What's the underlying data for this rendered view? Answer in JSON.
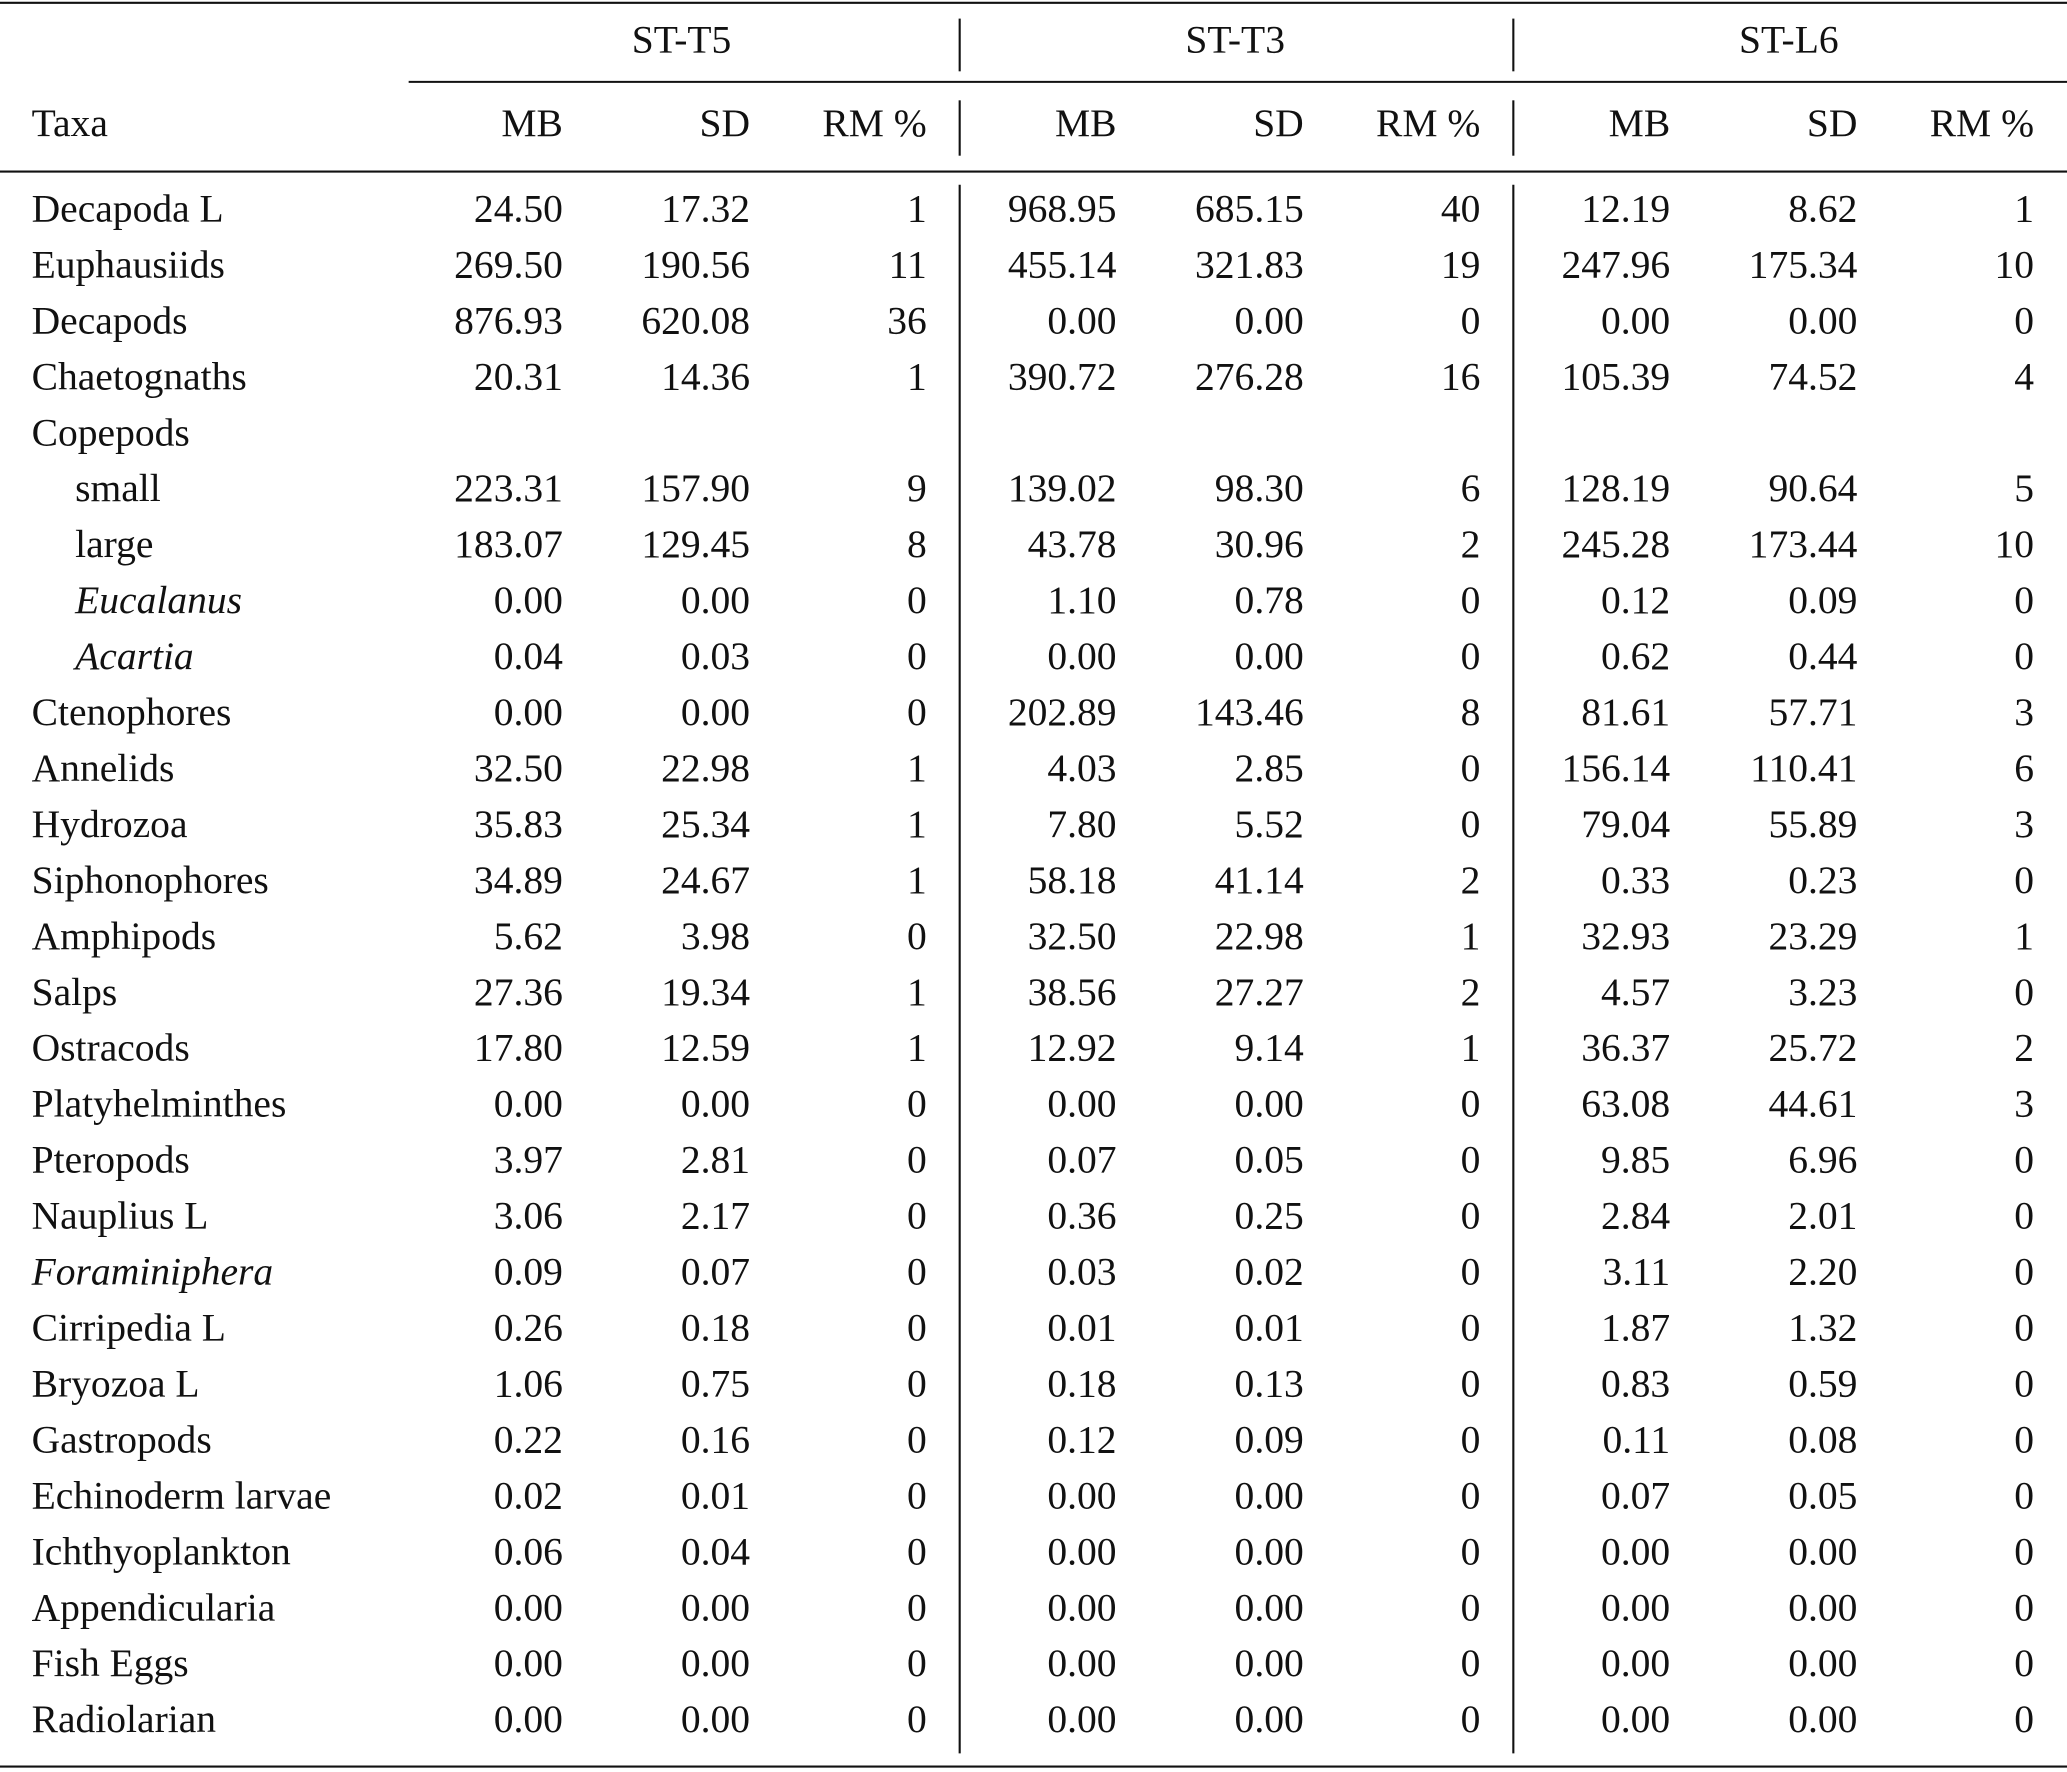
{
  "table": {
    "groups": [
      "ST-T5",
      "ST-T3",
      "ST-L6"
    ],
    "columns": [
      "Taxa",
      "MB",
      "SD",
      "RM %",
      "MB",
      "SD",
      "RM %",
      "MB",
      "SD",
      "RM %"
    ],
    "rows": [
      [
        "Decapoda L",
        "24.50",
        "17.32",
        "1",
        "968.95",
        "685.15",
        "40",
        "12.19",
        "8.62",
        "1"
      ],
      [
        "Euphausiids",
        "269.50",
        "190.56",
        "11",
        "455.14",
        "321.83",
        "19",
        "247.96",
        "175.34",
        "10"
      ],
      [
        "Decapods",
        "876.93",
        "620.08",
        "36",
        "0.00",
        "0.00",
        "0",
        "0.00",
        "0.00",
        "0"
      ],
      [
        "Chaetognaths",
        "20.31",
        "14.36",
        "1",
        "390.72",
        "276.28",
        "16",
        "105.39",
        "74.52",
        "4"
      ],
      [
        "Copepods"
      ],
      [
        "small",
        "223.31",
        "157.90",
        "9",
        "139.02",
        "98.30",
        "6",
        "128.19",
        "90.64",
        "5"
      ],
      [
        "large",
        "183.07",
        "129.45",
        "8",
        "43.78",
        "30.96",
        "2",
        "245.28",
        "173.44",
        "10"
      ],
      [
        "Eucalanus",
        "0.00",
        "0.00",
        "0",
        "1.10",
        "0.78",
        "0",
        "0.12",
        "0.09",
        "0"
      ],
      [
        "Acartia",
        "0.04",
        "0.03",
        "0",
        "0.00",
        "0.00",
        "0",
        "0.62",
        "0.44",
        "0"
      ],
      [
        "Ctenophores",
        "0.00",
        "0.00",
        "0",
        "202.89",
        "143.46",
        "8",
        "81.61",
        "57.71",
        "3"
      ],
      [
        "Annelids",
        "32.50",
        "22.98",
        "1",
        "4.03",
        "2.85",
        "0",
        "156.14",
        "110.41",
        "6"
      ],
      [
        "Hydrozoa",
        "35.83",
        "25.34",
        "1",
        "7.80",
        "5.52",
        "0",
        "79.04",
        "55.89",
        "3"
      ],
      [
        "Siphonophores",
        "34.89",
        "24.67",
        "1",
        "58.18",
        "41.14",
        "2",
        "0.33",
        "0.23",
        "0"
      ],
      [
        "Amphipods",
        "5.62",
        "3.98",
        "0",
        "32.50",
        "22.98",
        "1",
        "32.93",
        "23.29",
        "1"
      ],
      [
        "Salps",
        "27.36",
        "19.34",
        "1",
        "38.56",
        "27.27",
        "2",
        "4.57",
        "3.23",
        "0"
      ],
      [
        "Ostracods",
        "17.80",
        "12.59",
        "1",
        "12.92",
        "9.14",
        "1",
        "36.37",
        "25.72",
        "2"
      ],
      [
        "Platyhelminthes",
        "0.00",
        "0.00",
        "0",
        "0.00",
        "0.00",
        "0",
        "63.08",
        "44.61",
        "3"
      ],
      [
        "Pteropods",
        "3.97",
        "2.81",
        "0",
        "0.07",
        "0.05",
        "0",
        "9.85",
        "6.96",
        "0"
      ],
      [
        "Nauplius L",
        "3.06",
        "2.17",
        "0",
        "0.36",
        "0.25",
        "0",
        "2.84",
        "2.01",
        "0"
      ],
      [
        "Foraminiphera",
        "0.09",
        "0.07",
        "0",
        "0.03",
        "0.02",
        "0",
        "3.11",
        "2.20",
        "0"
      ],
      [
        "Cirripedia L",
        "0.26",
        "0.18",
        "0",
        "0.01",
        "0.01",
        "0",
        "1.87",
        "1.32",
        "0"
      ],
      [
        "Bryozoa L",
        "1.06",
        "0.75",
        "0",
        "0.18",
        "0.13",
        "0",
        "0.83",
        "0.59",
        "0"
      ],
      [
        "Gastropods",
        "0.22",
        "0.16",
        "0",
        "0.12",
        "0.09",
        "0",
        "0.11",
        "0.08",
        "0"
      ],
      [
        "Echinoderm larvae",
        "0.02",
        "0.01",
        "0",
        "0.00",
        "0.00",
        "0",
        "0.07",
        "0.05",
        "0"
      ],
      [
        "Ichthyoplankton",
        "0.06",
        "0.04",
        "0",
        "0.00",
        "0.00",
        "0",
        "0.00",
        "0.00",
        "0"
      ],
      [
        "Appendicularia",
        "0.00",
        "0.00",
        "0",
        "0.00",
        "0.00",
        "0",
        "0.00",
        "0.00",
        "0"
      ],
      [
        "Fish Eggs",
        "0.00",
        "0.00",
        "0",
        "0.00",
        "0.00",
        "0",
        "0.00",
        "0.00",
        "0"
      ],
      [
        "Radiolarian",
        "0.00",
        "0.00",
        "0",
        "0.00",
        "0.00",
        "0",
        "0.00",
        "0.00",
        "0"
      ]
    ]
  }
}
